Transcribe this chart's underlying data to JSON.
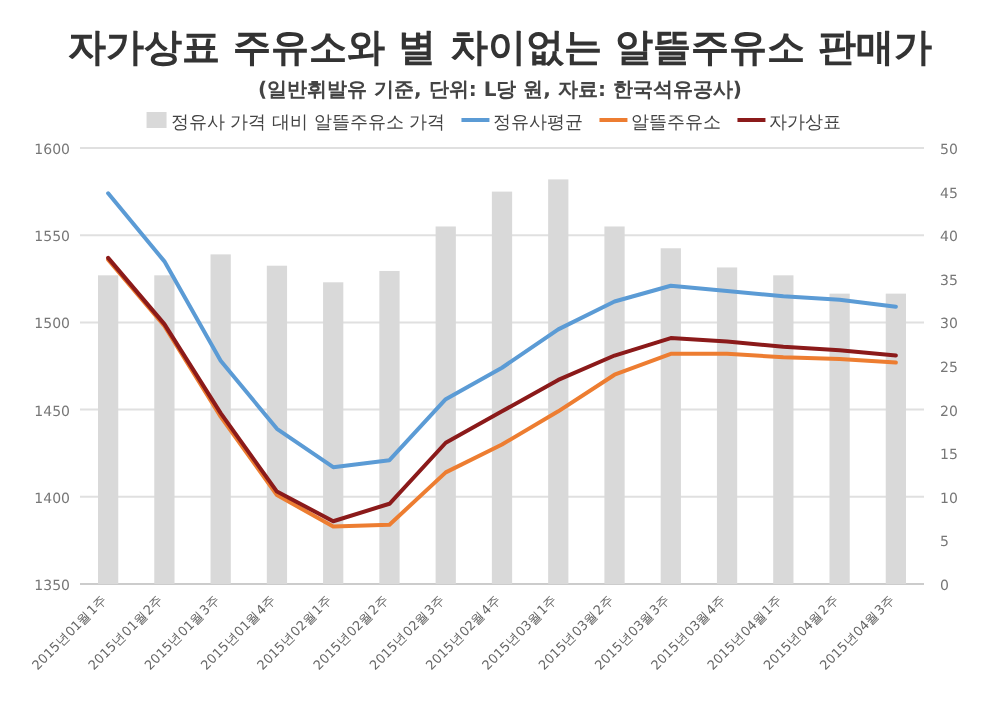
{
  "chart_data": {
    "type": "line",
    "title": "자가상표 주유소와 별 차이없는 알뜰주유소 판매가",
    "subtitle": "(일반휘발유 기준, 단위: L당 원, 자료:  한국석유공사)",
    "categories": [
      "2015년01월1주",
      "2015년01월2주",
      "2015년01월3주",
      "2015년01월4주",
      "2015년02월1주",
      "2015년02월2주",
      "2015년02월3주",
      "2015년02월4주",
      "2015년03월1주",
      "2015년03월2주",
      "2015년03월3주",
      "2015년03월4주",
      "2015년04월1주",
      "2015년04월2주",
      "2015년04월3주"
    ],
    "series": [
      {
        "name": "정유사 가격 대비 알뜰주유소 가격",
        "type": "bar",
        "axis": "y2",
        "color": "#d9d9d9",
        "values": [
          35.4,
          35.4,
          37.8,
          36.5,
          34.6,
          35.9,
          41.0,
          45.0,
          46.4,
          41.0,
          38.5,
          36.3,
          35.4,
          33.3,
          33.3
        ]
      },
      {
        "name": "정유사평균",
        "color": "#5b9bd5",
        "values": [
          1574,
          1535,
          1478,
          1439,
          1417,
          1421,
          1456,
          1474,
          1496,
          1512,
          1521,
          1518,
          1515,
          1513,
          1509
        ]
      },
      {
        "name": "알뜰주유소",
        "color": "#ed7d31",
        "values": [
          1536,
          1498,
          1446,
          1401,
          1383,
          1384,
          1414,
          1430,
          1449,
          1470,
          1482,
          1482,
          1480,
          1479,
          1477
        ]
      },
      {
        "name": "자가상표",
        "color": "#8b1a1a",
        "values": [
          1537,
          1499,
          1448,
          1403,
          1386,
          1396,
          1431,
          1449,
          1467,
          1481,
          1491,
          1489,
          1486,
          1484,
          1481
        ]
      }
    ],
    "ylim": [
      1350,
      1600
    ],
    "yticks": [
      1350,
      1400,
      1450,
      1500,
      1550,
      1600
    ],
    "y2lim": [
      0,
      50
    ],
    "y2ticks": [
      0,
      5,
      10,
      15,
      20,
      25,
      30,
      35,
      40,
      45,
      50
    ],
    "grid": "y",
    "legend": "top",
    "marker": "none",
    "line_style": "solid"
  }
}
